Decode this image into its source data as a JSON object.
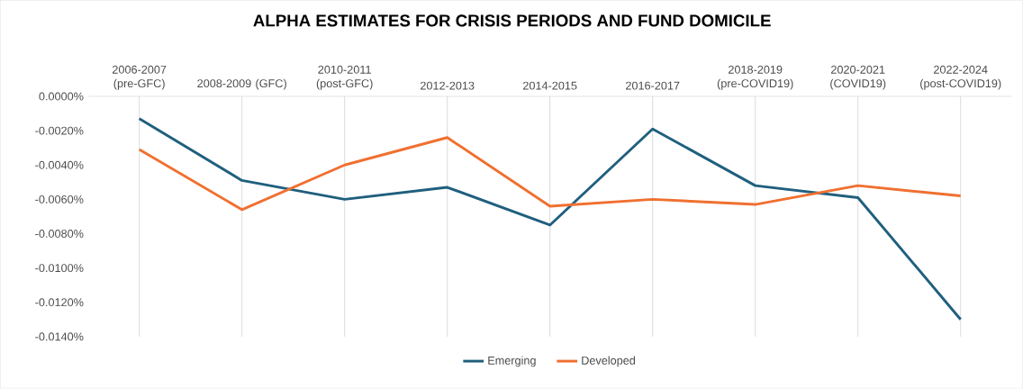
{
  "chart_data": {
    "type": "line",
    "title": "ALPHA ESTIMATES FOR CRISIS PERIODS AND FUND DOMICILE",
    "categories": [
      "2006-2007 (pre-GFC)",
      "2008-2009 (GFC)",
      "2010-2011 (post-GFC)",
      "2012-2013",
      "2014-2015",
      "2016-2017",
      "2018-2019 (pre-COVID19)",
      "2020-2021 (COVID19)",
      "2022-2024 (post-COVID19)"
    ],
    "series": [
      {
        "name": "Emerging",
        "color": "#1f5f7e",
        "values": [
          -0.0013,
          -0.0049,
          -0.006,
          -0.0053,
          -0.0075,
          -0.0019,
          -0.0052,
          -0.0059,
          -0.013
        ]
      },
      {
        "name": "Developed",
        "color": "#f07030",
        "values": [
          -0.0031,
          -0.0066,
          -0.004,
          -0.0024,
          -0.0064,
          -0.006,
          -0.0063,
          -0.0052,
          -0.0058
        ]
      }
    ],
    "ylim": [
      -0.014,
      0
    ],
    "yticks": [
      {
        "value": 0,
        "label": "0.0000%"
      },
      {
        "value": -0.002,
        "label": "-0.0020%"
      },
      {
        "value": -0.004,
        "label": "-0.0040%"
      },
      {
        "value": -0.006,
        "label": "-0.0060%"
      },
      {
        "value": -0.008,
        "label": "-0.0080%"
      },
      {
        "value": -0.01,
        "label": "-0.0100%"
      },
      {
        "value": -0.012,
        "label": "-0.0120%"
      },
      {
        "value": -0.014,
        "label": "-0.0140%"
      }
    ],
    "grid": "x",
    "legend": "bottom",
    "marker": "none",
    "line_style": "solid"
  }
}
